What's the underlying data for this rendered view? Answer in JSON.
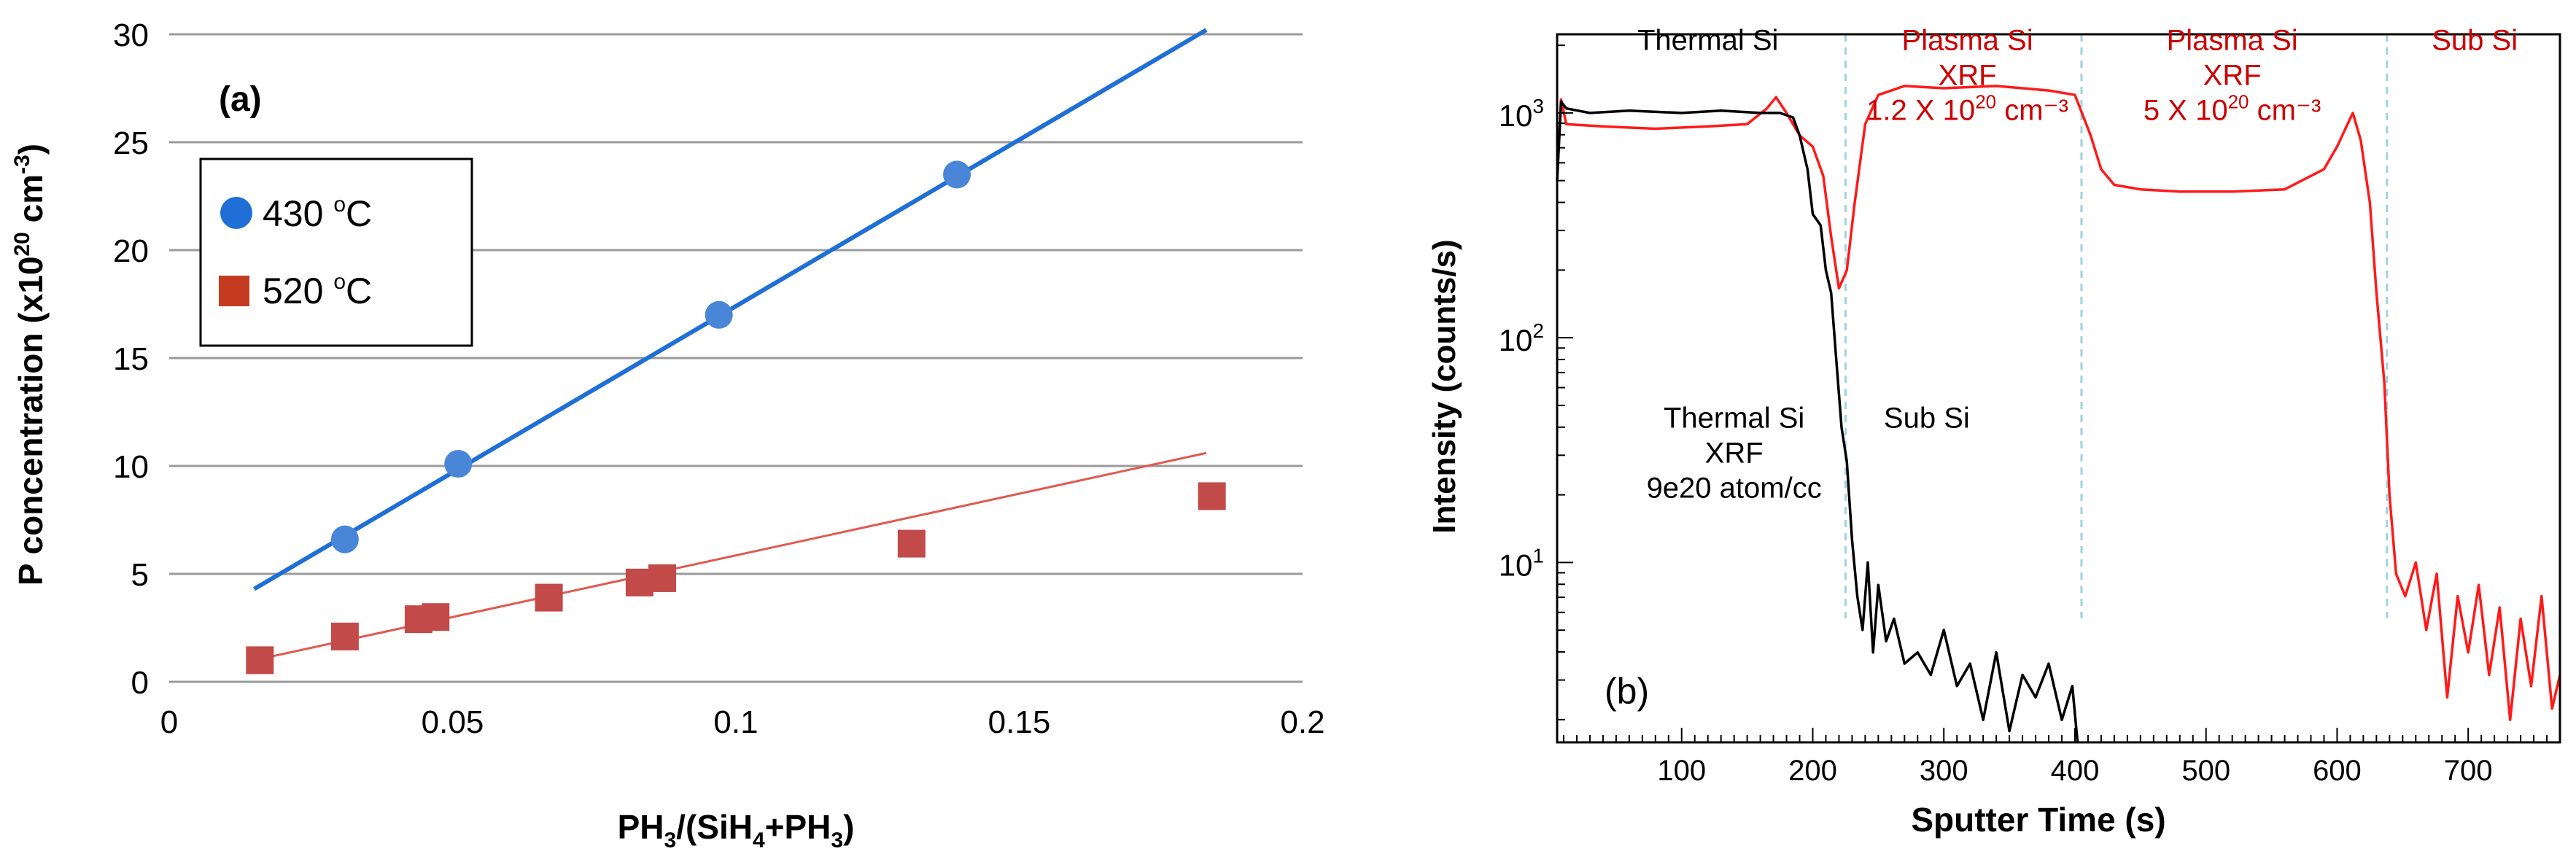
{
  "chart_data": [
    {
      "type": "scatter",
      "panel_label": "(a)",
      "xlabel_main": "PH",
      "xlabel_sub1": "3",
      "xlabel_mid": "/(SiH",
      "xlabel_sub2": "4",
      "xlabel_end": "+PH",
      "xlabel_sub3": "3",
      "xlabel_close": ")",
      "ylabel_main": "P concentration (x10",
      "ylabel_sup1": "20",
      "ylabel_mid": " cm",
      "ylabel_sup2": "-3",
      "ylabel_end": ")",
      "xlim": [
        0,
        0.2
      ],
      "ylim": [
        0,
        30
      ],
      "xticks": [
        0,
        0.05,
        0.1,
        0.15,
        0.2
      ],
      "xtick_labels": [
        "0",
        "0.05",
        "0.1",
        "0.15",
        "0.2"
      ],
      "yticks": [
        0,
        5,
        10,
        15,
        20,
        25,
        30
      ],
      "ytick_labels": [
        "0",
        "5",
        "10",
        "15",
        "20",
        "25",
        "30"
      ],
      "grid": "horizontal",
      "legend_position": "upper-left",
      "series": [
        {
          "name": "430 °C",
          "legend_number": "430 ",
          "legend_sup": "o",
          "legend_unit": "C",
          "marker": "circle",
          "color": "#1f6fd6",
          "marker_color": "#4a86d8",
          "x": [
            0.031,
            0.051,
            0.097,
            0.139
          ],
          "y": [
            6.6,
            10.1,
            17.0,
            23.5
          ],
          "fit": {
            "x": [
              0.015,
              0.183
            ],
            "y": [
              4.3,
              30.2
            ]
          }
        },
        {
          "name": "520 °C",
          "legend_number": "520 ",
          "legend_sup": "o",
          "legend_unit": "C",
          "marker": "square",
          "color": "#e05a50",
          "marker_color": "#c24a48",
          "x": [
            0.016,
            0.031,
            0.044,
            0.047,
            0.067,
            0.083,
            0.087,
            0.131,
            0.184
          ],
          "y": [
            1.0,
            2.1,
            2.9,
            3.0,
            3.9,
            4.6,
            4.8,
            6.4,
            8.6
          ],
          "fit": {
            "x": [
              0.015,
              0.183
            ],
            "y": [
              1.0,
              10.6
            ]
          }
        }
      ]
    },
    {
      "type": "line",
      "panel_label": "(b)",
      "xlabel": "Sputter Time (s)",
      "ylabel": "Intensity (counts/s)",
      "xlim": [
        5,
        770
      ],
      "ylim_log10": [
        0.2,
        3.35
      ],
      "y_scale": "log",
      "xticks": [
        100,
        200,
        300,
        400,
        500,
        600,
        700
      ],
      "xtick_labels": [
        "100",
        "200",
        "300",
        "400",
        "500",
        "600",
        "700"
      ],
      "yticks": [
        1,
        2,
        3
      ],
      "ytick_base": "10",
      "ytick_exps": [
        "1",
        "2",
        "3"
      ],
      "region_boundaries": [
        225,
        405,
        638
      ],
      "boundary_color": "#9fd3e0",
      "series": [
        {
          "name": "Thermal Si",
          "color": "#000000",
          "x": [
            5,
            8,
            12,
            30,
            60,
            100,
            130,
            160,
            175,
            185,
            190,
            196,
            200,
            206,
            210,
            214,
            218,
            222,
            226,
            230,
            234,
            238,
            242,
            246,
            250,
            256,
            262,
            270,
            280,
            290,
            300,
            310,
            320,
            330,
            340,
            350,
            360,
            370,
            380,
            390,
            398,
            402
          ],
          "log10_y": [
            2.7,
            3.05,
            3.02,
            3.0,
            3.01,
            3.0,
            3.01,
            3.0,
            3.0,
            2.98,
            2.9,
            2.75,
            2.55,
            2.5,
            2.3,
            2.2,
            1.9,
            1.6,
            1.45,
            1.1,
            0.85,
            0.7,
            1.0,
            0.6,
            0.9,
            0.65,
            0.75,
            0.55,
            0.6,
            0.5,
            0.7,
            0.45,
            0.55,
            0.3,
            0.6,
            0.25,
            0.5,
            0.4,
            0.55,
            0.3,
            0.45,
            0.2
          ]
        },
        {
          "name": "Plasma/Sub Si",
          "color": "#ff1a1a",
          "x": [
            5,
            8,
            12,
            40,
            80,
            120,
            150,
            165,
            172,
            180,
            190,
            200,
            208,
            214,
            220,
            226,
            232,
            240,
            250,
            270,
            300,
            340,
            380,
            400,
            412,
            420,
            430,
            450,
            480,
            520,
            560,
            590,
            600,
            608,
            612,
            618,
            625,
            630,
            636,
            640,
            645,
            652,
            660,
            668,
            676,
            684,
            692,
            700,
            708,
            716,
            724,
            732,
            740,
            748,
            756,
            764,
            770
          ],
          "log10_y": [
            2.7,
            3.06,
            2.95,
            2.94,
            2.93,
            2.94,
            2.95,
            3.02,
            3.07,
            3.0,
            2.9,
            2.85,
            2.72,
            2.45,
            2.22,
            2.3,
            2.6,
            2.95,
            3.08,
            3.12,
            3.11,
            3.12,
            3.1,
            3.08,
            2.9,
            2.75,
            2.68,
            2.66,
            2.65,
            2.65,
            2.66,
            2.75,
            2.85,
            2.95,
            3.0,
            2.88,
            2.6,
            2.2,
            1.8,
            1.3,
            0.95,
            0.85,
            1.0,
            0.7,
            0.95,
            0.4,
            0.85,
            0.6,
            0.9,
            0.5,
            0.8,
            0.3,
            0.75,
            0.45,
            0.85,
            0.35,
            0.5
          ]
        }
      ],
      "annotations": [
        {
          "lines": [
            "Thermal Si"
          ],
          "color": "#000000",
          "x": 120,
          "log10_y": 3.28
        },
        {
          "lines": [
            "Plasma Si",
            "XRF"
          ],
          "rich_line": {
            "pre": "1.2 X 10",
            "sup": "20",
            "post": " cm⁻³"
          },
          "color": "#cc0000",
          "x": 318,
          "log10_y": 3.28
        },
        {
          "lines": [
            "Plasma Si",
            "XRF"
          ],
          "rich_line": {
            "pre": "5 X 10",
            "sup": "20",
            "post": " cm⁻³"
          },
          "color": "#cc0000",
          "x": 520,
          "log10_y": 3.28
        },
        {
          "lines": [
            "Sub Si"
          ],
          "color": "#cc0000",
          "x": 705,
          "log10_y": 3.28
        },
        {
          "lines": [
            "Thermal Si",
            "XRF",
            "9e20 atom/cc"
          ],
          "color": "#000000",
          "x": 140,
          "log10_y": 1.6
        },
        {
          "lines": [
            "Sub Si"
          ],
          "color": "#000000",
          "x": 287,
          "log10_y": 1.6
        }
      ]
    }
  ]
}
